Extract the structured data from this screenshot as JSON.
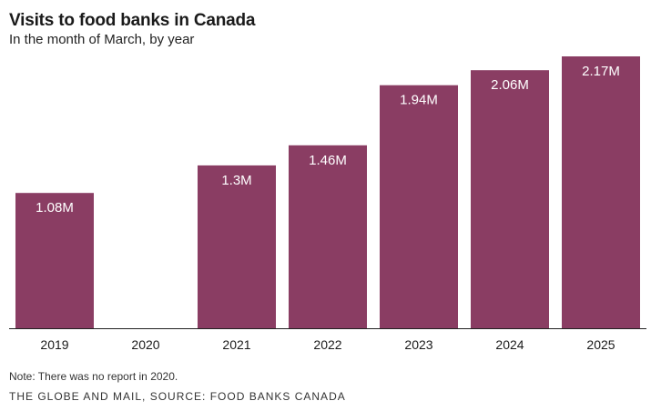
{
  "chart_data": {
    "type": "bar",
    "title": "Visits to food banks in Canada",
    "subtitle": "In the month of March, by year",
    "categories": [
      "2019",
      "2020",
      "2021",
      "2022",
      "2023",
      "2024",
      "2025"
    ],
    "values": [
      1.08,
      null,
      1.3,
      1.46,
      1.94,
      2.06,
      2.17
    ],
    "data_labels": [
      "1.08M",
      "",
      "1.3M",
      "1.46M",
      "1.94M",
      "2.06M",
      "2.17M"
    ],
    "unit": "M",
    "ylim": [
      0,
      2.17
    ],
    "grid": false,
    "bar_color": "#8a3d63",
    "label_color": "#ffffff",
    "baseline_color": "#222222"
  },
  "note": "Note: There was no report in 2020.",
  "source": "THE GLOBE AND MAIL, SOURCE: FOOD BANKS CANADA"
}
